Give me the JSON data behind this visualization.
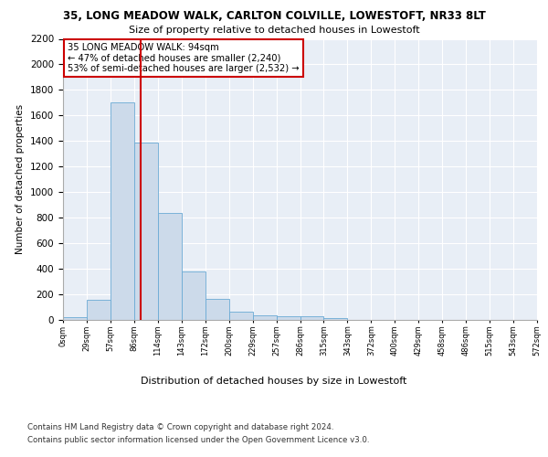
{
  "title_line1": "35, LONG MEADOW WALK, CARLTON COLVILLE, LOWESTOFT, NR33 8LT",
  "title_line2": "Size of property relative to detached houses in Lowestoft",
  "xlabel": "Distribution of detached houses by size in Lowestoft",
  "ylabel": "Number of detached properties",
  "bar_values": [
    20,
    155,
    1700,
    1390,
    835,
    380,
    165,
    65,
    35,
    28,
    28,
    15,
    0,
    0,
    0,
    0,
    0,
    0,
    0,
    0
  ],
  "bin_labels": [
    "0sqm",
    "29sqm",
    "57sqm",
    "86sqm",
    "114sqm",
    "143sqm",
    "172sqm",
    "200sqm",
    "229sqm",
    "257sqm",
    "286sqm",
    "315sqm",
    "343sqm",
    "372sqm",
    "400sqm",
    "429sqm",
    "458sqm",
    "486sqm",
    "515sqm",
    "543sqm",
    "572sqm"
  ],
  "bar_color": "#ccdaea",
  "bar_edge_color": "#6aaad4",
  "vline_color": "#cc0000",
  "annotation_text": "35 LONG MEADOW WALK: 94sqm\n← 47% of detached houses are smaller (2,240)\n53% of semi-detached houses are larger (2,532) →",
  "annotation_box_color": "#ffffff",
  "annotation_box_edge": "#cc0000",
  "footer_line1": "Contains HM Land Registry data © Crown copyright and database right 2024.",
  "footer_line2": "Contains public sector information licensed under the Open Government Licence v3.0.",
  "ylim": [
    0,
    2200
  ],
  "yticks": [
    0,
    200,
    400,
    600,
    800,
    1000,
    1200,
    1400,
    1600,
    1800,
    2000,
    2200
  ],
  "background_color": "#e8eef6",
  "fig_background": "#ffffff"
}
